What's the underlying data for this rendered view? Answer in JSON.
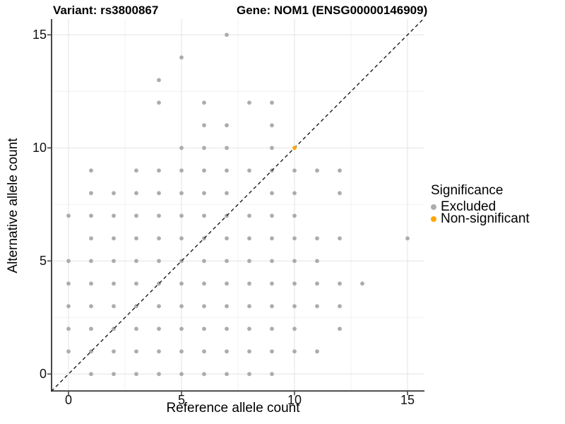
{
  "titles": {
    "variant": "Variant: rs3800867",
    "gene": "Gene: NOM1 (ENSG00000146909)"
  },
  "axes": {
    "x": {
      "label": "Reference allele count",
      "tick_labels": [
        "0",
        "5",
        "10",
        "15"
      ],
      "tick_values": [
        0,
        5,
        10,
        15
      ],
      "minor_gridlines": [
        2.5,
        7.5,
        12.5
      ],
      "range": [
        -0.75,
        15.75
      ]
    },
    "y": {
      "label": "Alternative allele count",
      "tick_labels": [
        "0",
        "5",
        "10",
        "15"
      ],
      "tick_values": [
        0,
        5,
        10,
        15
      ],
      "minor_gridlines": [
        2.5,
        7.5,
        12.5
      ],
      "range": [
        -0.75,
        15.75
      ]
    }
  },
  "legend": {
    "title": "Significance",
    "items": [
      {
        "label": "Excluded",
        "color": "#adadad"
      },
      {
        "label": "Non-significant",
        "color": "#FFA500"
      }
    ]
  },
  "colors": {
    "excluded_point": "#acacac",
    "non_significant_point": "#FFA500",
    "grid_major": "#e3e3e3",
    "grid_minor": "#f1f1f1",
    "axis_line": "#474747",
    "diagonal_line": "#1a1a1a"
  },
  "chart_data": {
    "type": "scatter",
    "title_left": "Variant: rs3800867",
    "title_right": "Gene: NOM1 (ENSG00000146909)",
    "xlabel": "Reference allele count",
    "ylabel": "Alternative allele count",
    "xlim": [
      -0.75,
      15.75
    ],
    "ylim": [
      -0.75,
      15.75
    ],
    "grid": "on",
    "legend_position": "right",
    "diagonal_line": {
      "type": "identity y=x",
      "style": "dashed",
      "color": "#1a1a1a"
    },
    "series": [
      {
        "name": "Excluded",
        "color": "#acacac",
        "points": [
          [
            1,
            0
          ],
          [
            2,
            0
          ],
          [
            3,
            0
          ],
          [
            4,
            0
          ],
          [
            5,
            0
          ],
          [
            6,
            0
          ],
          [
            7,
            0
          ],
          [
            8,
            0
          ],
          [
            9,
            0
          ],
          [
            0,
            1
          ],
          [
            1,
            1
          ],
          [
            2,
            1
          ],
          [
            3,
            1
          ],
          [
            4,
            1
          ],
          [
            5,
            1
          ],
          [
            6,
            1
          ],
          [
            7,
            1
          ],
          [
            8,
            1
          ],
          [
            9,
            1
          ],
          [
            10,
            1
          ],
          [
            11,
            1
          ],
          [
            0,
            2
          ],
          [
            1,
            2
          ],
          [
            2,
            2
          ],
          [
            3,
            2
          ],
          [
            4,
            2
          ],
          [
            5,
            2
          ],
          [
            6,
            2
          ],
          [
            7,
            2
          ],
          [
            8,
            2
          ],
          [
            9,
            2
          ],
          [
            10,
            2
          ],
          [
            12,
            2
          ],
          [
            0,
            3
          ],
          [
            1,
            3
          ],
          [
            2,
            3
          ],
          [
            3,
            3
          ],
          [
            4,
            3
          ],
          [
            5,
            3
          ],
          [
            6,
            3
          ],
          [
            7,
            3
          ],
          [
            8,
            3
          ],
          [
            9,
            3
          ],
          [
            10,
            3
          ],
          [
            11,
            3
          ],
          [
            12,
            3
          ],
          [
            0,
            4
          ],
          [
            1,
            4
          ],
          [
            2,
            4
          ],
          [
            3,
            4
          ],
          [
            4,
            4
          ],
          [
            5,
            4
          ],
          [
            6,
            4
          ],
          [
            7,
            4
          ],
          [
            8,
            4
          ],
          [
            9,
            4
          ],
          [
            10,
            4
          ],
          [
            11,
            4
          ],
          [
            12,
            4
          ],
          [
            13,
            4
          ],
          [
            0,
            5
          ],
          [
            1,
            5
          ],
          [
            2,
            5
          ],
          [
            3,
            5
          ],
          [
            4,
            5
          ],
          [
            5,
            5
          ],
          [
            6,
            5
          ],
          [
            7,
            5
          ],
          [
            8,
            5
          ],
          [
            9,
            5
          ],
          [
            10,
            5
          ],
          [
            11,
            5
          ],
          [
            1,
            6
          ],
          [
            2,
            6
          ],
          [
            3,
            6
          ],
          [
            4,
            6
          ],
          [
            5,
            6
          ],
          [
            6,
            6
          ],
          [
            7,
            6
          ],
          [
            8,
            6
          ],
          [
            9,
            6
          ],
          [
            10,
            6
          ],
          [
            11,
            6
          ],
          [
            12,
            6
          ],
          [
            15,
            6
          ],
          [
            0,
            7
          ],
          [
            1,
            7
          ],
          [
            2,
            7
          ],
          [
            3,
            7
          ],
          [
            4,
            7
          ],
          [
            5,
            7
          ],
          [
            6,
            7
          ],
          [
            7,
            7
          ],
          [
            8,
            7
          ],
          [
            9,
            7
          ],
          [
            10,
            7
          ],
          [
            1,
            8
          ],
          [
            2,
            8
          ],
          [
            3,
            8
          ],
          [
            4,
            8
          ],
          [
            5,
            8
          ],
          [
            6,
            8
          ],
          [
            7,
            8
          ],
          [
            9,
            8
          ],
          [
            10,
            8
          ],
          [
            12,
            8
          ],
          [
            1,
            9
          ],
          [
            3,
            9
          ],
          [
            4,
            9
          ],
          [
            5,
            9
          ],
          [
            6,
            9
          ],
          [
            7,
            9
          ],
          [
            8,
            9
          ],
          [
            9,
            9
          ],
          [
            10,
            9
          ],
          [
            11,
            9
          ],
          [
            12,
            9
          ],
          [
            5,
            10
          ],
          [
            6,
            10
          ],
          [
            7,
            10
          ],
          [
            9,
            10
          ],
          [
            6,
            11
          ],
          [
            7,
            11
          ],
          [
            9,
            11
          ],
          [
            4,
            12
          ],
          [
            6,
            12
          ],
          [
            8,
            12
          ],
          [
            9,
            12
          ],
          [
            4,
            13
          ],
          [
            5,
            14
          ],
          [
            7,
            15
          ]
        ]
      },
      {
        "name": "Non-significant",
        "color": "#FFA500",
        "points": [
          [
            10,
            10
          ]
        ]
      }
    ]
  }
}
